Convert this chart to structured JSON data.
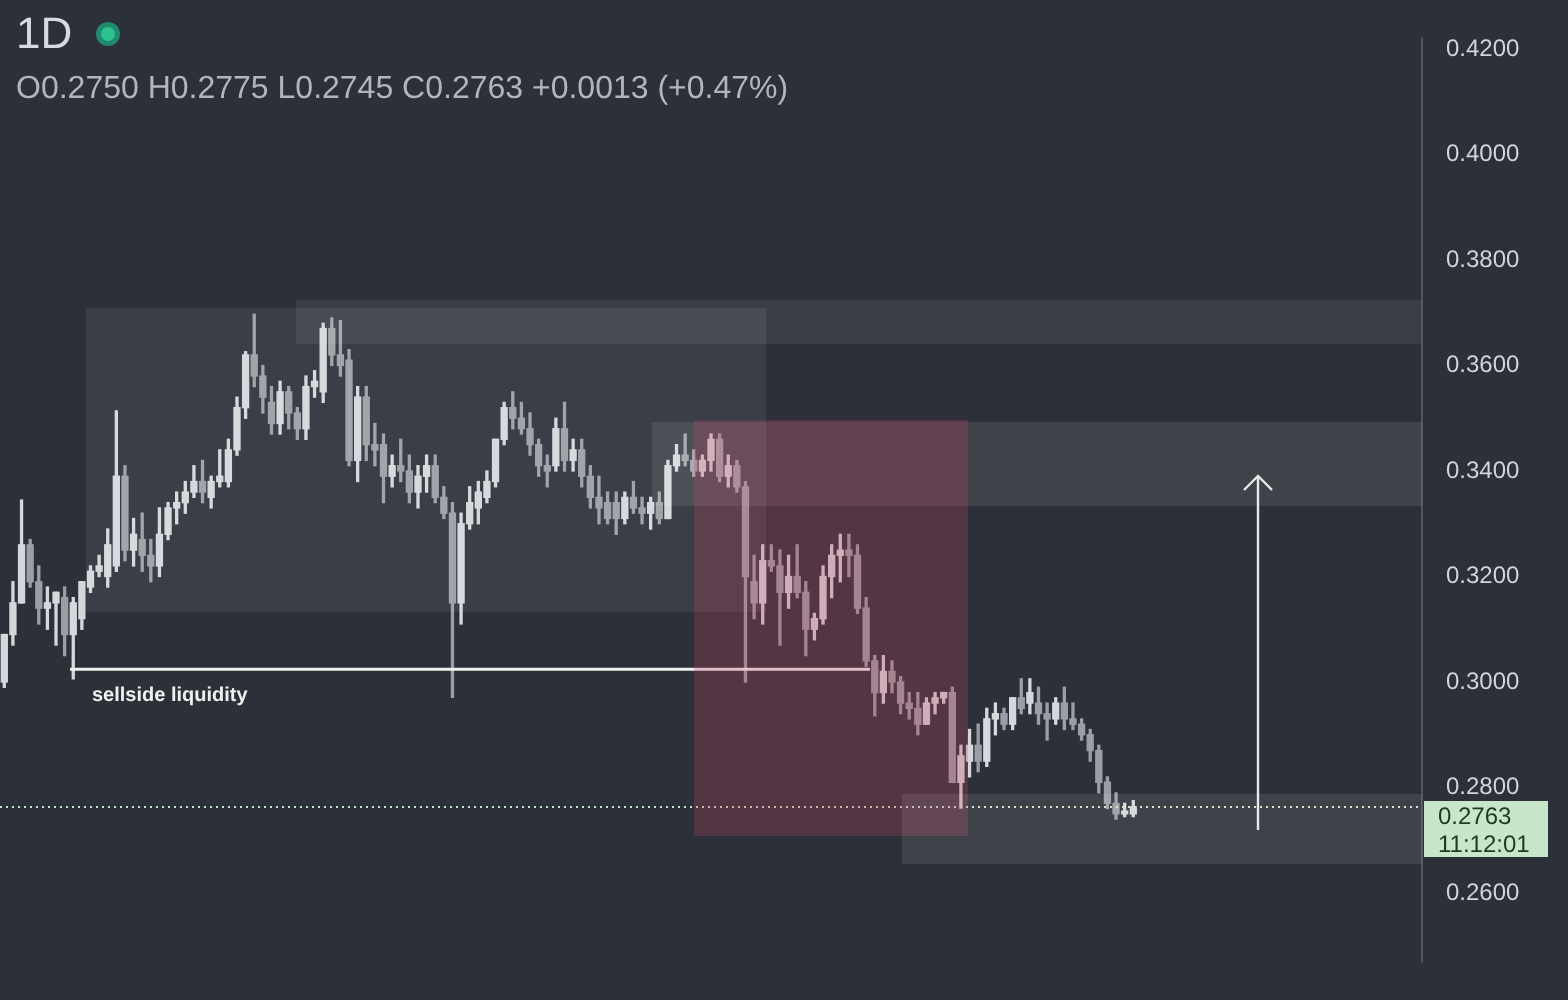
{
  "chart_data": {
    "type": "candlestick",
    "title": "1D",
    "subtitle": "O0.2750 H0.2775 L0.2745 C0.2763 +0.0013 (+0.47%)",
    "categories": [
      null,
      null,
      null,
      null,
      null,
      null,
      null,
      null,
      null,
      null,
      null,
      null,
      null,
      null,
      null,
      null,
      null,
      null,
      null,
      null,
      null,
      null,
      null,
      null,
      null,
      null,
      null,
      null,
      null,
      null,
      null,
      null,
      null,
      null,
      null,
      null,
      null,
      null,
      null,
      null,
      null,
      null,
      null,
      null,
      null,
      null,
      null,
      null,
      null,
      null,
      null,
      null,
      null,
      null,
      null,
      null,
      null,
      null,
      null,
      null,
      null,
      null,
      null,
      null,
      null,
      null,
      null,
      null,
      null,
      null,
      null,
      null,
      null,
      null,
      null,
      null,
      null,
      null,
      null,
      null,
      null,
      null,
      null,
      null,
      null,
      null,
      null,
      null,
      null,
      null,
      null,
      null,
      null,
      null,
      null,
      null,
      null,
      null,
      null,
      null,
      null,
      null,
      null,
      null,
      null,
      null,
      null,
      null,
      null,
      null,
      null,
      null,
      null,
      null,
      null,
      null,
      null,
      null,
      null,
      null,
      null,
      null,
      null,
      null,
      null,
      null,
      null,
      null,
      null,
      null,
      null,
      null,
      null,
      null,
      null,
      null,
      null,
      null,
      null,
      null,
      null,
      null,
      null,
      null,
      null,
      null,
      null,
      null,
      null,
      null,
      null,
      null,
      null,
      null,
      null,
      null,
      null,
      null,
      null,
      null,
      null,
      null,
      null,
      null,
      null
    ],
    "ohlc": [
      [
        0.3,
        0.309,
        0.299,
        0.309
      ],
      [
        0.309,
        0.319,
        0.307,
        0.315
      ],
      [
        0.315,
        0.3345,
        0.315,
        0.326
      ],
      [
        0.326,
        0.327,
        0.318,
        0.319
      ],
      [
        0.319,
        0.322,
        0.311,
        0.314
      ],
      [
        0.314,
        0.318,
        0.31,
        0.315
      ],
      [
        0.315,
        0.317,
        0.307,
        0.317
      ],
      [
        0.316,
        0.318,
        0.305,
        0.309
      ],
      [
        0.309,
        0.316,
        0.3006,
        0.315
      ],
      [
        0.312,
        0.319,
        0.31,
        0.319
      ],
      [
        0.318,
        0.322,
        0.317,
        0.321
      ],
      [
        0.321,
        0.324,
        0.32,
        0.322
      ],
      [
        0.32,
        0.329,
        0.318,
        0.326
      ],
      [
        0.322,
        0.3514,
        0.321,
        0.339
      ],
      [
        0.339,
        0.341,
        0.323,
        0.325
      ],
      [
        0.325,
        0.331,
        0.322,
        0.328
      ],
      [
        0.327,
        0.332,
        0.321,
        0.324
      ],
      [
        0.324,
        0.327,
        0.319,
        0.322
      ],
      [
        0.322,
        0.333,
        0.32,
        0.328
      ],
      [
        0.328,
        0.334,
        0.327,
        0.333
      ],
      [
        0.333,
        0.336,
        0.33,
        0.334
      ],
      [
        0.334,
        0.338,
        0.332,
        0.336
      ],
      [
        0.336,
        0.341,
        0.335,
        0.338
      ],
      [
        0.338,
        0.342,
        0.334,
        0.336
      ],
      [
        0.335,
        0.339,
        0.333,
        0.338
      ],
      [
        0.338,
        0.344,
        0.337,
        0.339
      ],
      [
        0.338,
        0.346,
        0.337,
        0.344
      ],
      [
        0.344,
        0.354,
        0.343,
        0.352
      ],
      [
        0.352,
        0.3626,
        0.35,
        0.362
      ],
      [
        0.362,
        0.3697,
        0.356,
        0.358
      ],
      [
        0.358,
        0.36,
        0.351,
        0.354
      ],
      [
        0.353,
        0.356,
        0.347,
        0.349
      ],
      [
        0.349,
        0.357,
        0.347,
        0.355
      ],
      [
        0.355,
        0.356,
        0.348,
        0.351
      ],
      [
        0.351,
        0.352,
        0.346,
        0.348
      ],
      [
        0.348,
        0.358,
        0.346,
        0.356
      ],
      [
        0.356,
        0.359,
        0.354,
        0.357
      ],
      [
        0.355,
        0.368,
        0.353,
        0.367
      ],
      [
        0.367,
        0.369,
        0.36,
        0.362
      ],
      [
        0.362,
        0.3685,
        0.358,
        0.36
      ],
      [
        0.361,
        0.363,
        0.341,
        0.342
      ],
      [
        0.342,
        0.356,
        0.338,
        0.354
      ],
      [
        0.354,
        0.356,
        0.342,
        0.345
      ],
      [
        0.345,
        0.349,
        0.341,
        0.344
      ],
      [
        0.345,
        0.347,
        0.334,
        0.339
      ],
      [
        0.339,
        0.343,
        0.337,
        0.341
      ],
      [
        0.341,
        0.346,
        0.338,
        0.34
      ],
      [
        0.34,
        0.343,
        0.334,
        0.336
      ],
      [
        0.336,
        0.341,
        0.333,
        0.339
      ],
      [
        0.339,
        0.343,
        0.336,
        0.341
      ],
      [
        0.341,
        0.343,
        0.334,
        0.335
      ],
      [
        0.335,
        0.337,
        0.331,
        0.332
      ],
      [
        0.332,
        0.334,
        0.2971,
        0.315
      ],
      [
        0.315,
        0.332,
        0.311,
        0.33
      ],
      [
        0.33,
        0.337,
        0.329,
        0.334
      ],
      [
        0.333,
        0.338,
        0.33,
        0.336
      ],
      [
        0.335,
        0.34,
        0.334,
        0.338
      ],
      [
        0.338,
        0.346,
        0.337,
        0.346
      ],
      [
        0.346,
        0.353,
        0.345,
        0.352
      ],
      [
        0.352,
        0.355,
        0.348,
        0.35
      ],
      [
        0.35,
        0.353,
        0.347,
        0.348
      ],
      [
        0.348,
        0.351,
        0.343,
        0.345
      ],
      [
        0.345,
        0.346,
        0.339,
        0.341
      ],
      [
        0.341,
        0.343,
        0.337,
        0.34
      ],
      [
        0.341,
        0.35,
        0.34,
        0.348
      ],
      [
        0.348,
        0.353,
        0.34,
        0.342
      ],
      [
        0.342,
        0.346,
        0.34,
        0.344
      ],
      [
        0.344,
        0.346,
        0.337,
        0.339
      ],
      [
        0.339,
        0.341,
        0.333,
        0.335
      ],
      [
        0.335,
        0.339,
        0.33,
        0.333
      ],
      [
        0.334,
        0.336,
        0.33,
        0.331
      ],
      [
        0.334,
        0.336,
        0.328,
        0.331
      ],
      [
        0.331,
        0.336,
        0.33,
        0.335
      ],
      [
        0.335,
        0.338,
        0.332,
        0.333
      ],
      [
        0.333,
        0.335,
        0.33,
        0.332
      ],
      [
        0.332,
        0.335,
        0.329,
        0.334
      ],
      [
        0.334,
        0.336,
        0.33,
        0.331
      ],
      [
        0.331,
        0.342,
        0.331,
        0.341
      ],
      [
        0.341,
        0.345,
        0.34,
        0.343
      ],
      [
        0.343,
        0.347,
        0.341,
        0.342
      ],
      [
        0.342,
        0.344,
        0.339,
        0.34
      ],
      [
        0.34,
        0.343,
        0.339,
        0.342
      ],
      [
        0.342,
        0.347,
        0.34,
        0.346
      ],
      [
        0.346,
        0.347,
        0.338,
        0.339
      ],
      [
        0.339,
        0.343,
        0.337,
        0.341
      ],
      [
        0.341,
        0.342,
        0.336,
        0.337
      ],
      [
        0.337,
        0.338,
        0.3,
        0.32
      ],
      [
        0.319,
        0.324,
        0.312,
        0.315
      ],
      [
        0.315,
        0.326,
        0.311,
        0.323
      ],
      [
        0.323,
        0.326,
        0.321,
        0.322
      ],
      [
        0.322,
        0.325,
        0.307,
        0.317
      ],
      [
        0.317,
        0.324,
        0.314,
        0.32
      ],
      [
        0.32,
        0.326,
        0.316,
        0.317
      ],
      [
        0.317,
        0.319,
        0.305,
        0.31
      ],
      [
        0.31,
        0.313,
        0.308,
        0.312
      ],
      [
        0.312,
        0.322,
        0.311,
        0.32
      ],
      [
        0.32,
        0.326,
        0.316,
        0.324
      ],
      [
        0.324,
        0.328,
        0.319,
        0.325
      ],
      [
        0.325,
        0.328,
        0.32,
        0.324
      ],
      [
        0.324,
        0.326,
        0.313,
        0.314
      ],
      [
        0.314,
        0.316,
        0.303,
        0.304
      ],
      [
        0.304,
        0.305,
        0.2936,
        0.298
      ],
      [
        0.298,
        0.305,
        0.296,
        0.302
      ],
      [
        0.302,
        0.304,
        0.298,
        0.3
      ],
      [
        0.3,
        0.301,
        0.294,
        0.296
      ],
      [
        0.296,
        0.298,
        0.293,
        0.295
      ],
      [
        0.295,
        0.298,
        0.29,
        0.292
      ],
      [
        0.292,
        0.297,
        0.292,
        0.296
      ],
      [
        0.296,
        0.298,
        0.294,
        0.297
      ],
      [
        0.297,
        0.298,
        0.296,
        0.298
      ],
      [
        0.298,
        0.299,
        0.281,
        0.281
      ],
      [
        0.281,
        0.288,
        0.2761,
        0.286
      ],
      [
        0.285,
        0.291,
        0.282,
        0.288
      ],
      [
        0.288,
        0.292,
        0.283,
        0.285
      ],
      [
        0.285,
        0.295,
        0.284,
        0.293
      ],
      [
        0.293,
        0.296,
        0.29,
        0.294
      ],
      [
        0.294,
        0.295,
        0.291,
        0.292
      ],
      [
        0.292,
        0.297,
        0.291,
        0.297
      ],
      [
        0.297,
        0.3006,
        0.294,
        0.295
      ],
      [
        0.296,
        0.3006,
        0.294,
        0.298
      ],
      [
        0.296,
        0.299,
        0.292,
        0.294
      ],
      [
        0.294,
        0.296,
        0.289,
        0.293
      ],
      [
        0.293,
        0.297,
        0.292,
        0.296
      ],
      [
        0.296,
        0.299,
        0.291,
        0.293
      ],
      [
        0.293,
        0.296,
        0.291,
        0.292
      ],
      [
        0.292,
        0.293,
        0.289,
        0.29
      ],
      [
        0.29,
        0.291,
        0.285,
        0.287
      ],
      [
        0.287,
        0.288,
        0.279,
        0.281
      ],
      [
        0.281,
        0.282,
        0.276,
        0.277
      ],
      [
        0.277,
        0.279,
        0.274,
        0.275
      ],
      [
        0.275,
        0.277,
        0.2745,
        0.2755
      ],
      [
        0.275,
        0.2775,
        0.2745,
        0.2763
      ],
      null,
      null,
      null,
      null,
      null,
      null,
      null,
      null,
      null,
      null,
      null,
      null,
      null,
      null,
      null,
      null,
      null,
      null,
      null,
      null,
      null,
      null,
      null,
      null,
      null,
      null,
      null,
      null,
      null,
      null,
      null,
      null,
      null
    ],
    "colors": [
      "#d6d7da",
      "#d6d7da",
      "#d6d7da",
      "#9b9ea6",
      "#9b9ea6",
      "#d6d7da",
      "#d6d7da",
      "#9b9ea6",
      "#d6d7da",
      "#d6d7da",
      "#d6d7da",
      "#d6d7da",
      "#d6d7da",
      "#d6d7da",
      "#9b9ea6",
      "#d6d7da",
      "#9b9ea6",
      "#9b9ea6",
      "#d6d7da",
      "#d6d7da",
      "#d6d7da",
      "#d6d7da",
      "#d6d7da",
      "#9b9ea6",
      "#d6d7da",
      "#d6d7da",
      "#d6d7da",
      "#d6d7da",
      "#d6d7da",
      "#9b9ea6",
      "#9b9ea6",
      "#9b9ea6",
      "#d6d7da",
      "#9b9ea6",
      "#9b9ea6",
      "#d6d7da",
      "#d6d7da",
      "#d6d7da",
      "#9b9ea6",
      "#9b9ea6",
      "#9b9ea6",
      "#d6d7da",
      "#9b9ea6",
      "#9b9ea6",
      "#9b9ea6",
      "#d6d7da",
      "#9b9ea6",
      "#9b9ea6",
      "#d6d7da",
      "#d6d7da",
      "#9b9ea6",
      "#9b9ea6",
      "#9b9ea6",
      "#d6d7da",
      "#d6d7da",
      "#d6d7da",
      "#d6d7da",
      "#d6d7da",
      "#d6d7da",
      "#9b9ea6",
      "#9b9ea6",
      "#9b9ea6",
      "#9b9ea6",
      "#9b9ea6",
      "#d6d7da",
      "#9b9ea6",
      "#d6d7da",
      "#9b9ea6",
      "#9b9ea6",
      "#9b9ea6",
      "#9b9ea6",
      "#9b9ea6",
      "#d6d7da",
      "#9b9ea6",
      "#9b9ea6",
      "#d6d7da",
      "#9b9ea6",
      "#d6d7da",
      "#d6d7da",
      "#9b9ea6",
      "#9b9ea6",
      "#d6d7da",
      "#d6d7da",
      "#9b9ea6",
      "#d6d7da",
      "#9b9ea6",
      "#9b9ea6",
      "#9b9ea6",
      "#d6d7da",
      "#9b9ea6",
      "#9b9ea6",
      "#d6d7da",
      "#9b9ea6",
      "#9b9ea6",
      "#d6d7da",
      "#d6d7da",
      "#d6d7da",
      "#d6d7da",
      "#9b9ea6",
      "#9b9ea6",
      "#9b9ea6",
      "#9b9ea6",
      "#d6d7da",
      "#9b9ea6",
      "#9b9ea6",
      "#9b9ea6",
      "#9b9ea6",
      "#d6d7da",
      "#d6d7da",
      "#d6d7da",
      "#9b9ea6",
      "#d6d7da",
      "#d6d7da",
      "#9b9ea6",
      "#d6d7da",
      "#d6d7da",
      "#9b9ea6",
      "#d6d7da",
      "#9b9ea6",
      "#d6d7da",
      "#9b9ea6",
      "#9b9ea6",
      "#d6d7da",
      "#9b9ea6",
      "#9b9ea6",
      "#9b9ea6",
      "#9b9ea6",
      "#9b9ea6",
      "#9b9ea6",
      "#9b9ea6",
      "#d6d7da",
      "#d6d7da",
      null,
      null,
      null,
      null,
      null,
      null,
      null,
      null,
      null,
      null,
      null,
      null,
      null,
      null,
      null,
      null,
      null,
      null,
      null,
      null,
      null,
      null,
      null,
      null,
      null,
      null,
      null,
      null,
      null,
      null,
      null,
      null,
      null
    ],
    "ylim": [
      0.247,
      0.422
    ],
    "yticks": [
      {
        "value": 0.26,
        "label": "0.2600"
      },
      {
        "value": 0.28,
        "label": "0.2800"
      },
      {
        "value": 0.3,
        "label": "0.3000"
      },
      {
        "value": 0.32,
        "label": "0.3200"
      },
      {
        "value": 0.34,
        "label": "0.3400"
      },
      {
        "value": 0.36,
        "label": "0.3600"
      },
      {
        "value": 0.38,
        "label": "0.3800"
      },
      {
        "value": 0.4,
        "label": "0.4000"
      },
      {
        "value": 0.42,
        "label": "0.4200"
      }
    ],
    "tick_labels": "y",
    "ref_lines": [
      {
        "axis": "y",
        "value": 0.2763,
        "label": "0.2763",
        "color": "#c8e6c9",
        "line_style": "dotted"
      },
      {
        "axis": "y",
        "value": 0.3024,
        "label": "sellside liquidity",
        "color": "#f0f0f0",
        "line_style": "solid"
      }
    ],
    "annotations": [
      "11:12:01"
    ]
  }
}
